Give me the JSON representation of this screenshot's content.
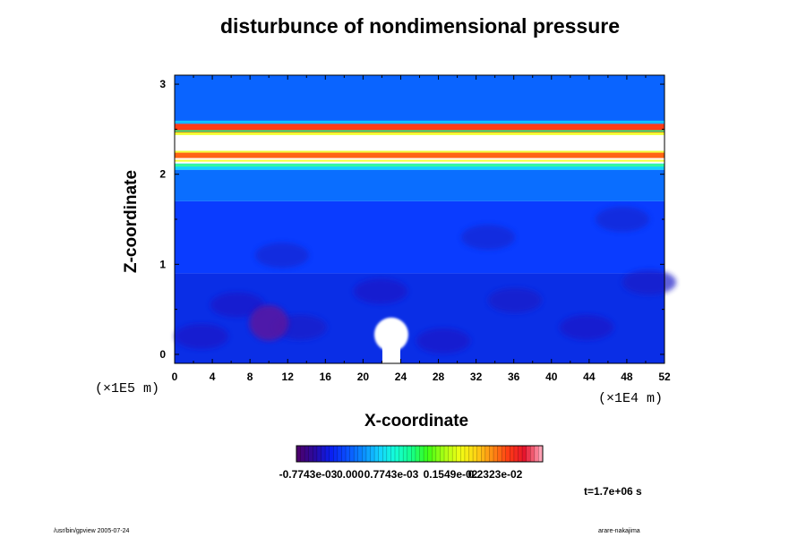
{
  "title": "disturbunce of nondimensional pressure",
  "chart_data": {
    "type": "heatmap",
    "title": "disturbunce of nondimensional pressure",
    "xlabel": "X-coordinate",
    "ylabel": "Z-coordinate",
    "x_unit": "(×1E4 m)",
    "y_unit": "(×1E5 m)",
    "xlim": [
      0,
      52
    ],
    "ylim": [
      -0.1,
      3.1
    ],
    "x_ticks": [
      "0",
      "4",
      "8",
      "12",
      "16",
      "20",
      "24",
      "28",
      "32",
      "36",
      "40",
      "44",
      "48",
      "52"
    ],
    "y_ticks": [
      "0",
      "1",
      "2",
      "3"
    ],
    "colorbar": {
      "tick_labels": [
        "-0.7743e-03",
        "0.000",
        "0.7743e-03",
        "0.1549e-02",
        "0.2323e-02"
      ],
      "colors": [
        "#4b006e",
        "#2a0aa0",
        "#0a1ef0",
        "#0a50ff",
        "#0a8cff",
        "#14d2ff",
        "#14ffd7",
        "#14ff8c",
        "#3cff14",
        "#aaff14",
        "#f0ff14",
        "#ffd214",
        "#ff8c14",
        "#ff3c14",
        "#e6142d",
        "#ffa0b4"
      ]
    },
    "bands": [
      {
        "z_from": -0.1,
        "z_to": 0.9,
        "value": "-0.7743e-03",
        "color": "#0a2ee6"
      },
      {
        "z_from": 0.9,
        "z_to": 1.7,
        "value": "-0.7743e-03",
        "color": "#0a3cff"
      },
      {
        "z_from": 1.7,
        "z_to": 2.05,
        "value": "0.000",
        "color": "#0a6eff"
      },
      {
        "z_from": 2.05,
        "z_to": 2.12,
        "value": "0.7743e-03",
        "color": "#14d2ff"
      },
      {
        "z_from": 2.12,
        "z_to": 2.18,
        "value": "above range",
        "color": "#ffffff"
      },
      {
        "z_from": 2.18,
        "z_to": 2.24,
        "value": "0.2323e-02",
        "color": "#ff6414"
      },
      {
        "z_from": 2.24,
        "z_to": 2.46,
        "value": "above range",
        "color": "#ffffff"
      },
      {
        "z_from": 2.46,
        "z_to": 2.56,
        "value": "0.2323e-02",
        "color": "#ff3c14"
      },
      {
        "z_from": 2.56,
        "z_to": 3.1,
        "value": "0.000",
        "color": "#0a64ff"
      }
    ],
    "features": [
      {
        "name": "white plume",
        "x_center": 23,
        "z_top": 0.4,
        "value": "above range"
      },
      {
        "name": "purple patch",
        "x_center": 10,
        "z": 0.35,
        "value": "below range"
      }
    ],
    "time": "t=1.7e+06 s"
  },
  "footer": {
    "left": "/usr/bin/gpview 2005-07-24",
    "right": "arare-nakajima"
  }
}
